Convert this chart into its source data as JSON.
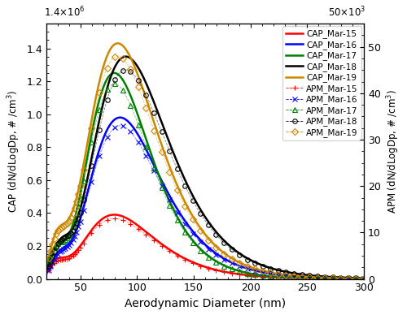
{
  "xlabel": "Aerodynamic Diameter (nm)",
  "ylabel_left": "CAP (dN/dLogDp, # /cm$^3$)",
  "ylabel_right": "APM (dN/dLogDp, # /cm$^3$)",
  "xlim": [
    20,
    300
  ],
  "ylim_left": [
    0,
    1550000.0
  ],
  "ylim_right": [
    0,
    55000
  ],
  "yticks_left": [
    0,
    200000.0,
    400000.0,
    600000.0,
    800000.0,
    1000000.0,
    1200000.0,
    1400000.0
  ],
  "ytick_labels_left": [
    "0.0",
    "0.2",
    "0.4",
    "0.6",
    "0.8",
    "1.0",
    "1.2",
    "1.4"
  ],
  "yticks_right": [
    0,
    10000,
    20000,
    30000,
    40000,
    50000
  ],
  "ytick_labels_right": [
    "0",
    "10",
    "20",
    "30",
    "40",
    "50"
  ],
  "xticks": [
    50,
    100,
    150,
    200,
    250,
    300
  ],
  "cap_colors": [
    "red",
    "blue",
    "green",
    "black",
    "#cc8800"
  ],
  "apm_colors": [
    "red",
    "blue",
    "green",
    "black",
    "#cc8800"
  ],
  "cap_labels": [
    "CAP_Mar-15",
    "CAP_Mar-16",
    "CAP_Mar-17",
    "CAP_Mar-18",
    "CAP_Mar-19"
  ],
  "apm_labels": [
    "APM_Mar-15",
    "APM_Mar-16",
    "APM_Mar-17",
    "APM_Mar-18",
    "APM_Mar-19"
  ],
  "apm_markers": [
    "+",
    "x",
    "^",
    "o",
    "D"
  ],
  "background_color": "white"
}
